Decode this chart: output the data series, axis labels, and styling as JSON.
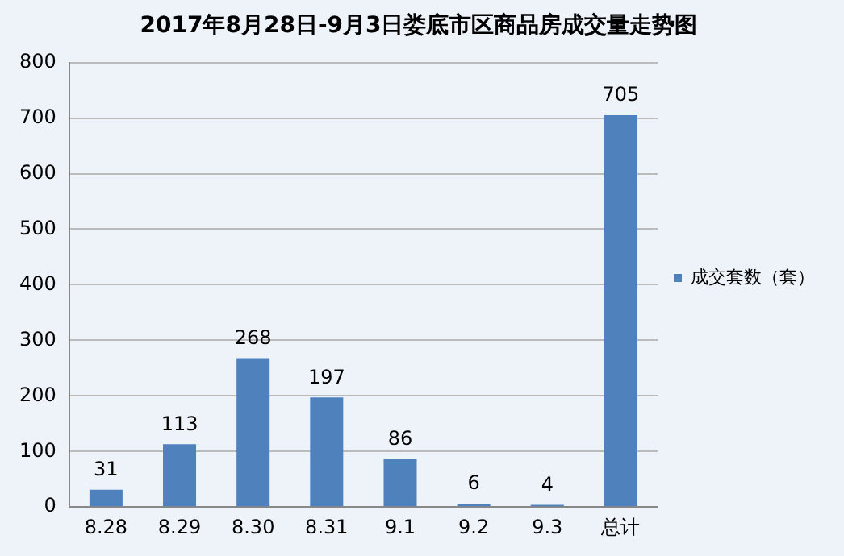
{
  "chart_data": {
    "type": "bar",
    "title": "2017年8月28日-9月3日娄底市区商品房成交量走势图",
    "categories": [
      "8.28",
      "8.29",
      "8.30",
      "8.31",
      "9.1",
      "9.2",
      "9.3",
      "总计"
    ],
    "series": [
      {
        "name": "成交套数（套）",
        "color": "#4f81bd",
        "values": [
          31,
          113,
          268,
          197,
          86,
          6,
          4,
          705
        ]
      }
    ],
    "ylim": [
      0,
      800
    ],
    "yticks": [
      0,
      100,
      200,
      300,
      400,
      500,
      600,
      700,
      800
    ],
    "grid": "y",
    "legend": "right",
    "data_labels": true
  }
}
